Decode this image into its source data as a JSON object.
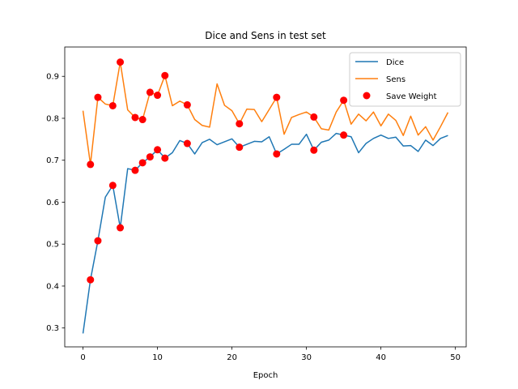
{
  "chart_data": {
    "type": "line",
    "title": "Dice and Sens in test set",
    "xlabel": "Epoch",
    "ylabel": "",
    "xlim": [
      -2.45,
      51.45
    ],
    "ylim": [
      0.255,
      0.97
    ],
    "xticks": [
      0,
      10,
      20,
      30,
      40,
      50
    ],
    "yticks": [
      0.3,
      0.4,
      0.5,
      0.6,
      0.7,
      0.8,
      0.9
    ],
    "grid": false,
    "legend_position": "upper right",
    "x": [
      0,
      1,
      2,
      3,
      4,
      5,
      6,
      7,
      8,
      9,
      10,
      11,
      12,
      13,
      14,
      15,
      16,
      17,
      18,
      19,
      20,
      21,
      22,
      23,
      24,
      25,
      26,
      27,
      28,
      29,
      30,
      31,
      32,
      33,
      34,
      35,
      36,
      37,
      38,
      39,
      40,
      41,
      42,
      43,
      44,
      45,
      46,
      47,
      48,
      49
    ],
    "series": [
      {
        "name": "Dice",
        "color": "#1f77b4",
        "values": [
          0.287,
          0.415,
          0.508,
          0.612,
          0.64,
          0.539,
          0.68,
          0.676,
          0.694,
          0.708,
          0.725,
          0.705,
          0.718,
          0.747,
          0.74,
          0.715,
          0.742,
          0.75,
          0.737,
          0.744,
          0.751,
          0.731,
          0.738,
          0.745,
          0.744,
          0.756,
          0.715,
          0.726,
          0.738,
          0.738,
          0.762,
          0.724,
          0.743,
          0.748,
          0.764,
          0.76,
          0.756,
          0.718,
          0.74,
          0.752,
          0.76,
          0.752,
          0.755,
          0.734,
          0.735,
          0.721,
          0.748,
          0.735,
          0.752,
          0.759
        ]
      },
      {
        "name": "Sens",
        "color": "#ff7f0e",
        "values": [
          0.818,
          0.69,
          0.85,
          0.834,
          0.83,
          0.934,
          0.82,
          0.802,
          0.797,
          0.862,
          0.855,
          0.902,
          0.83,
          0.841,
          0.832,
          0.797,
          0.783,
          0.779,
          0.882,
          0.831,
          0.818,
          0.787,
          0.822,
          0.821,
          0.792,
          0.821,
          0.85,
          0.762,
          0.802,
          0.809,
          0.815,
          0.803,
          0.775,
          0.772,
          0.815,
          0.843,
          0.786,
          0.81,
          0.794,
          0.815,
          0.782,
          0.81,
          0.795,
          0.759,
          0.805,
          0.76,
          0.78,
          0.748,
          0.78,
          0.814
        ]
      }
    ],
    "save_weight": {
      "name": "Save Weight",
      "color": "#ff0000",
      "points": [
        [
          1,
          0.415
        ],
        [
          2,
          0.508
        ],
        [
          4,
          0.64
        ],
        [
          5,
          0.539
        ],
        [
          7,
          0.676
        ],
        [
          8,
          0.694
        ],
        [
          9,
          0.708
        ],
        [
          10,
          0.725
        ],
        [
          11,
          0.705
        ],
        [
          14,
          0.74
        ],
        [
          21,
          0.731
        ],
        [
          26,
          0.715
        ],
        [
          31,
          0.724
        ],
        [
          35,
          0.76
        ],
        [
          1,
          0.69
        ],
        [
          2,
          0.85
        ],
        [
          4,
          0.83
        ],
        [
          5,
          0.934
        ],
        [
          7,
          0.802
        ],
        [
          8,
          0.797
        ],
        [
          9,
          0.862
        ],
        [
          10,
          0.855
        ],
        [
          11,
          0.902
        ],
        [
          14,
          0.832
        ],
        [
          21,
          0.787
        ],
        [
          26,
          0.85
        ],
        [
          31,
          0.803
        ],
        [
          35,
          0.843
        ]
      ]
    }
  }
}
